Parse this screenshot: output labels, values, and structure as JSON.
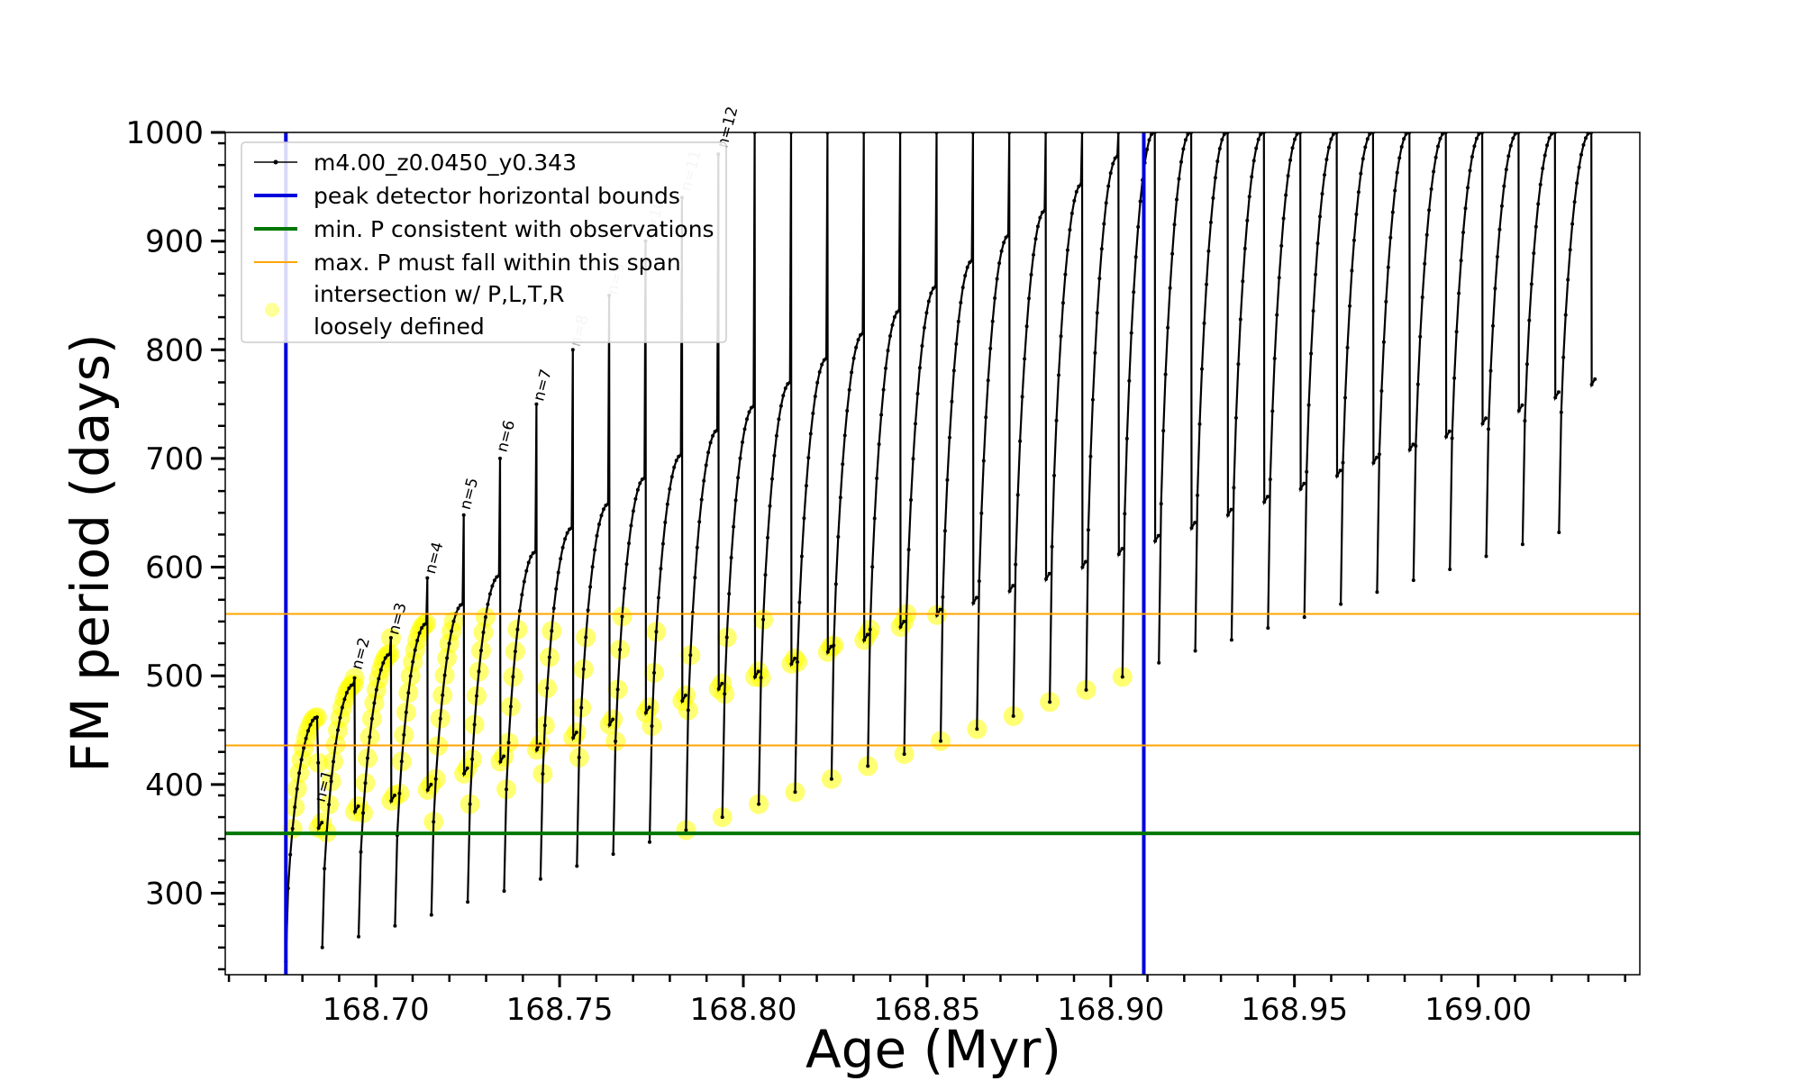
{
  "chart_data": {
    "type": "line",
    "xlabel": "Age (Myr)",
    "ylabel": "FM period (days)",
    "xlim": [
      168.659,
      169.044
    ],
    "ylim": [
      225,
      1000
    ],
    "x_ticks": [
      168.7,
      168.75,
      168.8,
      168.85,
      168.9,
      168.95,
      169.0
    ],
    "x_tick_labels": [
      "168.70",
      "168.75",
      "168.80",
      "168.85",
      "168.90",
      "168.95",
      "169.00"
    ],
    "y_ticks": [
      300,
      400,
      500,
      600,
      700,
      800,
      900,
      1000
    ],
    "y_tick_labels": [
      "300",
      "400",
      "500",
      "600",
      "700",
      "800",
      "900",
      "1000"
    ],
    "grid": false,
    "legend_placement": "upper-left",
    "series": [
      {
        "name": "m4.00_z0.0450_y0.343",
        "kind": "pulse-cycle-track",
        "color": "#000000",
        "cycle_start_ages": [
          168.6755,
          168.6854,
          168.6953,
          168.7052,
          168.7151,
          168.725,
          168.7349,
          168.7448,
          168.7547,
          168.7646,
          168.7745,
          168.7844,
          168.7943,
          168.8042,
          168.8141,
          168.824,
          168.8339,
          168.8438,
          168.8537,
          168.8636,
          168.8735,
          168.8834,
          168.8933,
          168.9032,
          168.9131,
          168.923,
          168.9329,
          168.9428,
          168.9527,
          168.9626,
          168.9725,
          168.9824,
          168.9923,
          169.0022,
          169.0121,
          169.022
        ],
        "cycle_min_periods": [
          237,
          250,
          260,
          270,
          280,
          292,
          302,
          313,
          325,
          336,
          347,
          358,
          370,
          382,
          393,
          405,
          417,
          428,
          440,
          451,
          463,
          476,
          487,
          499,
          512,
          523,
          533,
          544,
          554,
          566,
          577,
          588,
          598,
          610,
          621,
          632
        ],
        "cycle_arc_peak_periods": [
          462,
          492,
          520,
          548,
          566,
          592,
          614,
          636,
          658,
          682,
          703,
          726,
          748,
          770,
          792,
          815,
          836,
          858,
          882,
          905,
          928,
          952,
          978,
          1000,
          1000,
          1000,
          1000,
          1000,
          1000,
          1000,
          1000,
          1000,
          1000,
          1000,
          1000,
          1000
        ],
        "cycle_spike_max_periods": [
          420,
          498,
          535,
          590,
          648,
          700,
          750,
          800,
          850,
          900,
          940,
          980,
          1000,
          1000,
          1000,
          1000,
          1000,
          1000,
          1000,
          1000,
          1000,
          1000,
          1000,
          1000,
          1000,
          1000,
          1000,
          1000,
          1000,
          1000,
          1000,
          1000,
          1000,
          1000,
          1000,
          1000
        ],
        "cycle_low_periods": [
          360,
          375,
          385,
          395,
          410,
          421,
          432,
          443,
          455,
          466,
          477,
          488,
          499,
          511,
          522,
          533,
          545,
          556,
          567,
          578,
          589,
          600,
          612,
          624,
          636,
          648,
          660,
          672,
          684,
          696,
          708,
          720,
          732,
          744,
          756,
          768
        ]
      },
      {
        "name": "peak detector horizontal bounds",
        "kind": "vline",
        "color": "#0000dd",
        "x": [
          168.6755,
          168.909
        ]
      },
      {
        "name": "min. P consistent with observations",
        "kind": "hline",
        "color": "#007700",
        "y": 355
      },
      {
        "name": "max. P must fall within this span",
        "kind": "hline",
        "color": "#ffa500",
        "y": [
          436,
          557
        ]
      },
      {
        "name": "intersection w/ P,L,T,R\nloosely defined",
        "kind": "highlight",
        "color": "#ffff00",
        "x_range": [
          168.6755,
          168.909
        ],
        "y_range": [
          355,
          557
        ]
      }
    ],
    "annotations": [
      {
        "text": "n=1",
        "x": 168.686,
        "y": 383,
        "color": "#000000"
      },
      {
        "text": "n=2",
        "x": 168.696,
        "y": 505,
        "color": "#000000"
      },
      {
        "text": "n=3",
        "x": 168.706,
        "y": 537,
        "color": "#000000"
      },
      {
        "text": "n=4",
        "x": 168.716,
        "y": 593,
        "color": "#000000"
      },
      {
        "text": "n=5",
        "x": 168.7255,
        "y": 652,
        "color": "#000000"
      },
      {
        "text": "n=6",
        "x": 168.7355,
        "y": 705,
        "color": "#000000"
      },
      {
        "text": "n=7",
        "x": 168.7455,
        "y": 752,
        "color": "#000000"
      },
      {
        "text": "n=8",
        "x": 168.7555,
        "y": 802,
        "color": "#bbbbbb"
      },
      {
        "text": "n=9",
        "x": 168.7655,
        "y": 850,
        "color": "#bbbbbb"
      },
      {
        "text": "n=10",
        "x": 168.7755,
        "y": 900,
        "color": "#bbbbbb"
      },
      {
        "text": "n=11",
        "x": 168.7855,
        "y": 945,
        "color": "#bbbbbb"
      },
      {
        "text": "n=12",
        "x": 168.7955,
        "y": 985,
        "color": "#000000"
      }
    ]
  }
}
